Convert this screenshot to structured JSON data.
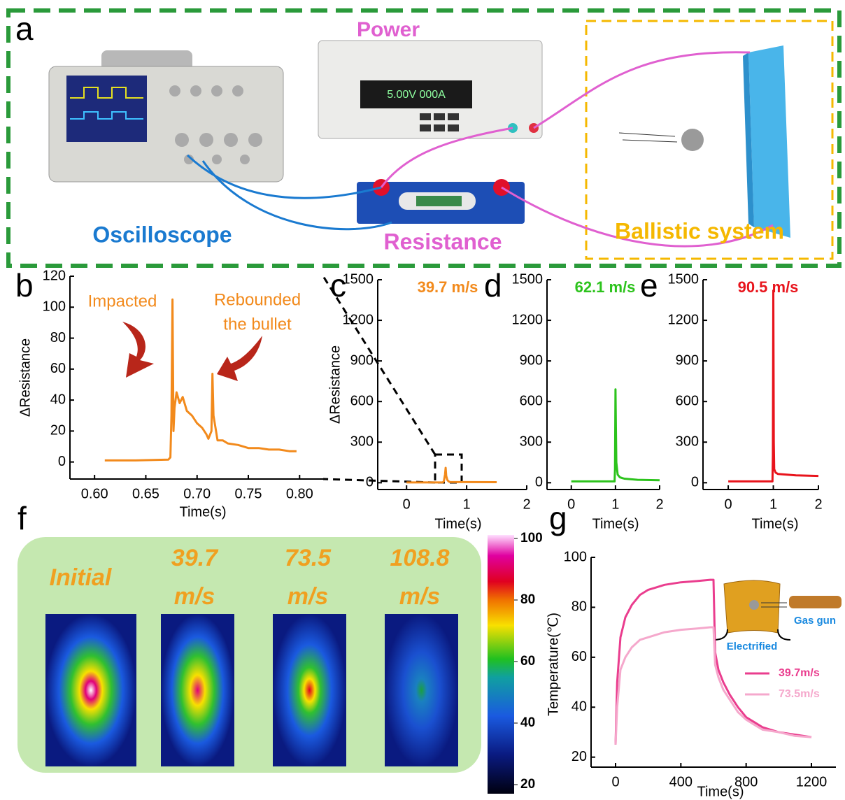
{
  "panel_labels": [
    "a",
    "b",
    "c",
    "d",
    "e",
    "f",
    "g"
  ],
  "panel_a": {
    "labels": [
      "Power",
      "Oscilloscope",
      "Resistance",
      "Ballistic system"
    ]
  },
  "panel_f": {
    "titles": [
      [
        "Initial"
      ],
      [
        "39.7",
        "m/s"
      ],
      [
        "73.5",
        "m/s"
      ],
      [
        "108.8",
        "m/s"
      ]
    ],
    "colorbar": {
      "lim": [
        20,
        100
      ],
      "ticks": [
        20,
        40,
        60,
        80,
        100
      ]
    }
  },
  "chart_data": [
    {
      "type": "line",
      "x_label": "Time(s)",
      "y_label": "ΔResistance",
      "color": "#f28a1c",
      "annotations": [
        "Impacted",
        "Rebounded",
        "the bullet"
      ],
      "x": [
        0.61,
        0.64,
        0.672,
        0.674,
        0.675,
        0.676,
        0.677,
        0.678,
        0.68,
        0.683,
        0.686,
        0.69,
        0.695,
        0.7,
        0.705,
        0.709,
        0.711,
        0.714,
        0.715,
        0.716,
        0.718,
        0.72,
        0.725,
        0.73,
        0.74,
        0.75,
        0.76,
        0.77,
        0.78,
        0.79,
        0.797
      ],
      "values": [
        1,
        1,
        1.5,
        3,
        30,
        105,
        20,
        35,
        45,
        38,
        42,
        33,
        30,
        25,
        22,
        18,
        15,
        20,
        57,
        30,
        22,
        14,
        14,
        12,
        11,
        9,
        9,
        8,
        8,
        7,
        7
      ],
      "xlim": [
        0.576,
        0.823
      ],
      "ylim": [
        -11,
        120
      ],
      "xticks": [
        {
          "value": 0.6,
          "label": "0.60"
        },
        {
          "value": 0.65,
          "label": "0.65"
        },
        {
          "value": 0.7,
          "label": "0.70"
        },
        {
          "value": 0.75,
          "label": "0.75"
        },
        {
          "value": 0.8,
          "label": "0.80"
        }
      ],
      "yticks": [
        0,
        20,
        40,
        60,
        80,
        100,
        120
      ]
    },
    {
      "type": "line",
      "title": "39.7 m/s",
      "x_label": "Time(s)",
      "y_label": "ΔResistance",
      "color": "#f28a1c",
      "x": [
        0,
        0.6,
        0.62,
        0.64,
        0.65,
        0.66,
        0.68,
        0.7,
        0.72,
        1,
        1.5
      ],
      "values": [
        2,
        2,
        10,
        60,
        110,
        50,
        20,
        10,
        6,
        5,
        4
      ],
      "xlim": [
        -0.48,
        2
      ],
      "ylim": [
        -50,
        1500
      ],
      "xticks": [
        0,
        1,
        2
      ],
      "yticks": [
        0,
        300,
        600,
        900,
        1200,
        1500
      ]
    },
    {
      "type": "line",
      "title": "62.1 m/s",
      "x_label": "Time(s)",
      "color": "#2cc31c",
      "x": [
        0,
        0.98,
        0.99,
        1.0,
        1.01,
        1.02,
        1.05,
        1.1,
        1.2,
        1.5,
        2
      ],
      "values": [
        10,
        10,
        100,
        690,
        400,
        150,
        60,
        40,
        30,
        22,
        18
      ],
      "xlim": [
        -0.55,
        2
      ],
      "ylim": [
        -50,
        1500
      ],
      "xticks": [
        0,
        1,
        2
      ],
      "yticks": [
        0,
        300,
        600,
        900,
        1200,
        1500
      ]
    },
    {
      "type": "line",
      "title": "90.5 m/s",
      "x_label": "Time(s)",
      "color": "#e8141c",
      "x": [
        0,
        0.98,
        0.99,
        1.0,
        1.005,
        1.01,
        1.02,
        1.05,
        1.1,
        1.5,
        2
      ],
      "values": [
        10,
        10,
        200,
        1420,
        800,
        300,
        100,
        75,
        65,
        55,
        50
      ],
      "xlim": [
        -0.56,
        2
      ],
      "ylim": [
        -50,
        1500
      ],
      "xticks": [
        0,
        1,
        2
      ],
      "yticks": [
        0,
        300,
        600,
        900,
        1200,
        1500
      ]
    },
    {
      "type": "line",
      "x_label": "Time(s)",
      "y_label": "Temperature(℃)",
      "annotations": [
        "Gas gun",
        "Electrified"
      ],
      "x": [
        0,
        10,
        30,
        60,
        100,
        150,
        200,
        250,
        300,
        400,
        500,
        580,
        600,
        610,
        630,
        660,
        700,
        750,
        800,
        850,
        900,
        1000,
        1100,
        1200
      ],
      "series": [
        {
          "name": "39.7m/s",
          "color": "#ea3d8e",
          "values": [
            25,
            50,
            68,
            76,
            81,
            85,
            87,
            88,
            89,
            90,
            90.5,
            91,
            91,
            62,
            55,
            50,
            45,
            40,
            36,
            34,
            32,
            30,
            29,
            28
          ]
        },
        {
          "name": "73.5m/s",
          "color": "#f5a8cc",
          "values": [
            25,
            40,
            55,
            60,
            64,
            67,
            68,
            69,
            70,
            71,
            71.5,
            72,
            72,
            57,
            52,
            47,
            43,
            38,
            35,
            33,
            31,
            30,
            28.5,
            28
          ]
        }
      ],
      "xlim": [
        -150,
        1350
      ],
      "ylim": [
        16,
        100
      ],
      "xticks": [
        0,
        400,
        800,
        1200
      ],
      "yticks": [
        20,
        40,
        60,
        80,
        100
      ]
    }
  ]
}
